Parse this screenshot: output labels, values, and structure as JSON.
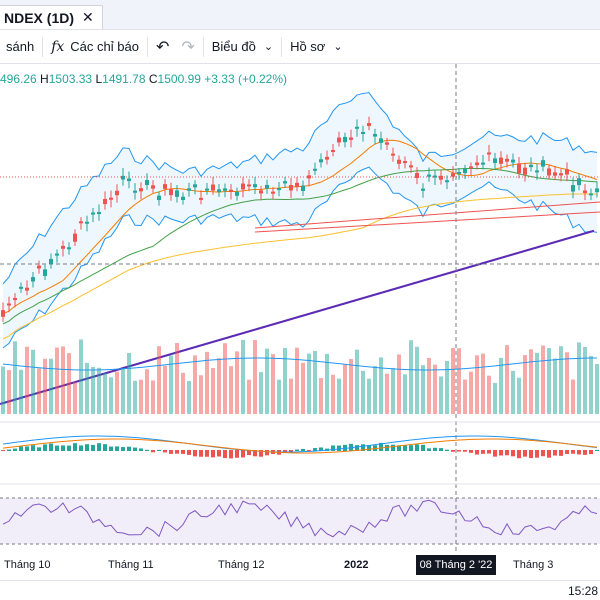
{
  "tab": {
    "title": "NDEX (1D)",
    "close": "✕"
  },
  "toolbar": {
    "compare": "sánh",
    "indicators_icon": "fx",
    "indicators": "Các chỉ báo",
    "undo_icon": "↶",
    "redo_icon": "↷",
    "chart_type": "Biểu đồ",
    "profile": "Hồ sơ",
    "chevron": "⌄"
  },
  "legend": {
    "open": "496.26",
    "high_label": "H",
    "high": "1503.33",
    "low_label": "L",
    "low": "1491.78",
    "close_label": "C",
    "close": "1500.99",
    "change": "+3.33 (+0.22%)"
  },
  "xaxis": {
    "labels": [
      "Tháng 10",
      "Tháng 11",
      "Tháng 12",
      "2022",
      "Tháng 3"
    ],
    "crosshair": "08 Tháng 2 '22"
  },
  "status": {
    "time": "15:28"
  },
  "colors": {
    "up": "#26a69a",
    "down": "#ef5350",
    "bollinger": "#2196f3",
    "ma_slow": "#5b2bb5",
    "rsi": "#7e57c2"
  }
}
